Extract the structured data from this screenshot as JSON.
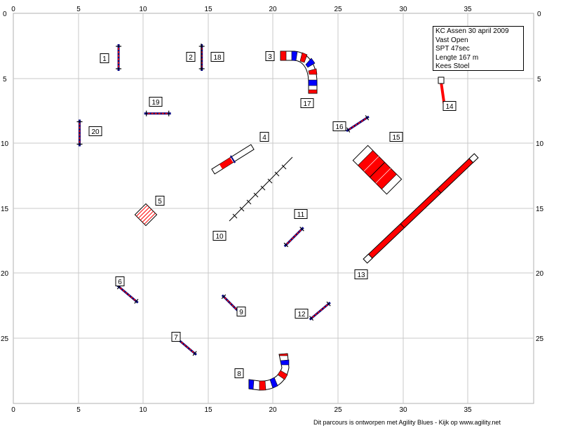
{
  "info": {
    "lines": [
      "KC Assen 30 april 2009",
      "Vast Open",
      "SPT 47sec",
      "Lengte 167 m",
      "Kees Stoel"
    ]
  },
  "footer": "Dit parcours is ontworpen met Agility Blues - Kijk op www.agility.net",
  "axes": {
    "x_ticks": [
      "0",
      "5",
      "10",
      "15",
      "20",
      "25",
      "30",
      "35"
    ],
    "y_ticks": [
      "0",
      "5",
      "10",
      "15",
      "20",
      "25"
    ]
  },
  "colors": {
    "grid": "#c8c8c8",
    "red": "#ff0000",
    "blue": "#0000ff",
    "navy": "#000080"
  },
  "obstacles": [
    {
      "num": "1",
      "kind": "jump",
      "x": 8.1,
      "y": 3.4,
      "angle": 90
    },
    {
      "num": "2",
      "kind": "jump",
      "x": 14.5,
      "y": 3.4,
      "angle": 90
    },
    {
      "num": "3",
      "kind": "tunnel-start"
    },
    {
      "num": "4",
      "kind": "seesaw"
    },
    {
      "num": "5",
      "kind": "weave-square"
    },
    {
      "num": "6",
      "kind": "jump",
      "x": 8.8,
      "y": 21.6,
      "angle": -40
    },
    {
      "num": "7",
      "kind": "jump",
      "x": 13.3,
      "y": 25.6,
      "angle": -40
    },
    {
      "num": "8",
      "kind": "tunnel"
    },
    {
      "num": "9",
      "kind": "jump",
      "x": 16.8,
      "y": 22.4,
      "angle": -45
    },
    {
      "num": "10",
      "kind": "weave"
    },
    {
      "num": "11",
      "kind": "jump",
      "x": 21.6,
      "y": 17.2,
      "angle": 45
    },
    {
      "num": "12",
      "kind": "jump",
      "x": 23.6,
      "y": 22.9,
      "angle": 40
    },
    {
      "num": "13",
      "kind": "dogwalk"
    },
    {
      "num": "14",
      "kind": "tire"
    },
    {
      "num": "15",
      "kind": "a-frame"
    },
    {
      "num": "16",
      "kind": "jump",
      "x": 26.5,
      "y": 8.5,
      "angle": 33
    },
    {
      "num": "17",
      "kind": "tunnel-end"
    },
    {
      "num": "18",
      "kind": "jump-second"
    },
    {
      "num": "19",
      "kind": "jump",
      "x": 11.1,
      "y": 7.7,
      "angle": 0
    },
    {
      "num": "20",
      "kind": "jump",
      "x": 5.1,
      "y": 9.2,
      "angle": 90
    }
  ]
}
